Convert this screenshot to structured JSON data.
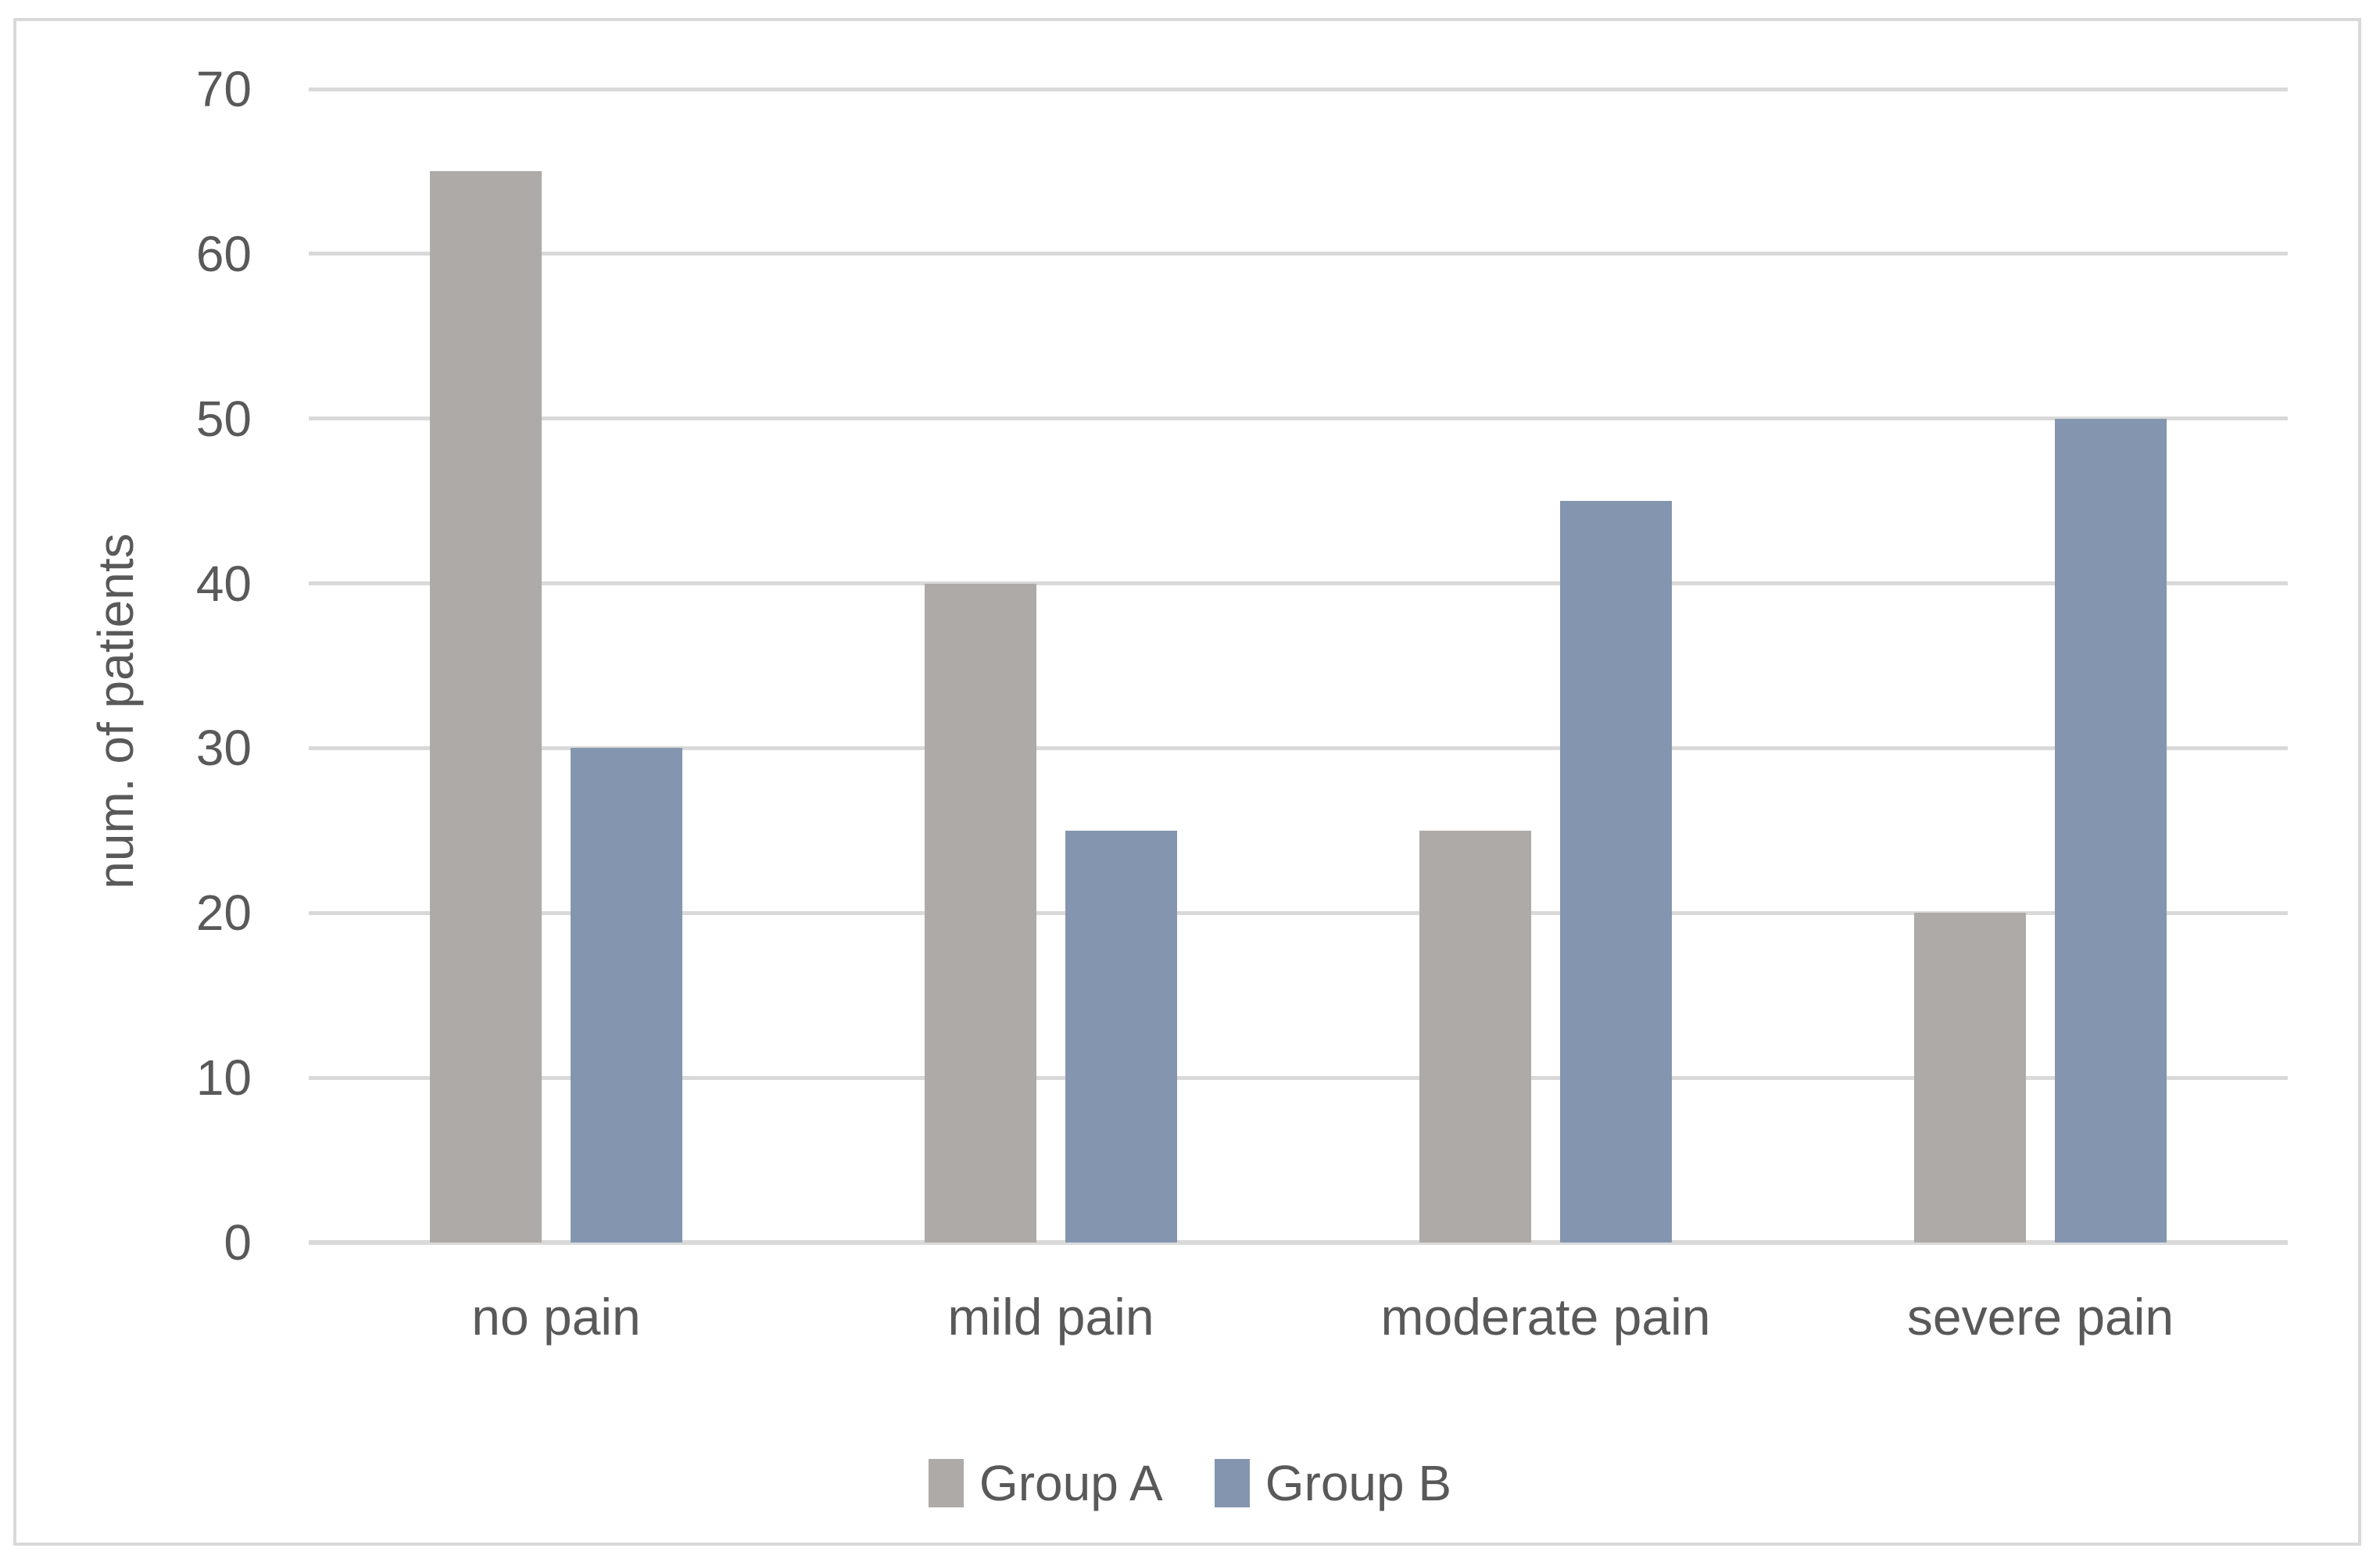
{
  "chart_data": {
    "type": "bar",
    "title": "",
    "categories": [
      "no pain",
      "mild pain",
      "moderate pain",
      "severe pain"
    ],
    "series": [
      {
        "name": "Group A",
        "color": "#adaaa8",
        "values": [
          65,
          40,
          25,
          20
        ]
      },
      {
        "name": "Group B",
        "color": "#8496af",
        "values": [
          30,
          25,
          45,
          50
        ]
      }
    ],
    "xlabel": "",
    "ylabel": "num. of patients",
    "ylim": [
      0,
      70
    ],
    "yticks": [
      0,
      10,
      20,
      30,
      40,
      50,
      60,
      70
    ],
    "grid": "horizontal",
    "legend_position": "bottom"
  },
  "colors": {
    "grid": "#d9d9d9",
    "axis_line": "#d9d9d9",
    "text": "#595959",
    "frame_border": "#d9d9d9",
    "background": "#ffffff"
  }
}
